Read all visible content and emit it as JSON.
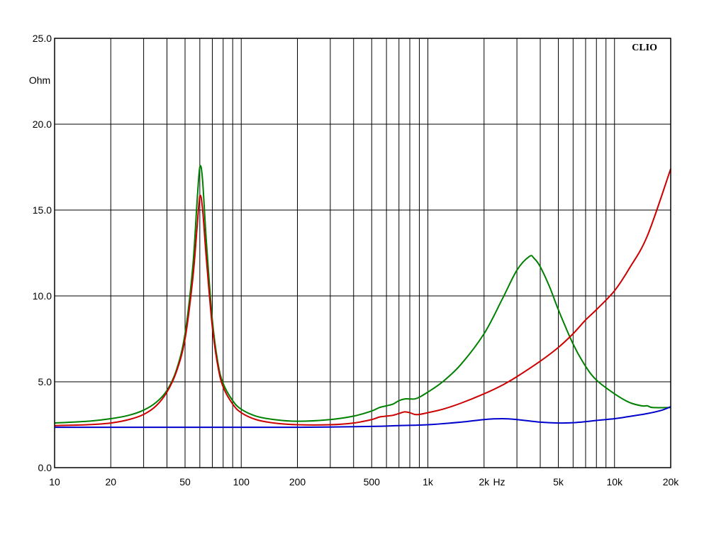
{
  "chart_data": {
    "type": "line",
    "brand": "CLIO",
    "ylabel": "Ohm",
    "xlabel": "Hz",
    "xscale": "log",
    "xlim": [
      10,
      20000
    ],
    "ylim": [
      0,
      25
    ],
    "grid": true,
    "x_ticks": [
      {
        "value": 10,
        "label": "10"
      },
      {
        "value": 20,
        "label": "20"
      },
      {
        "value": 50,
        "label": "50"
      },
      {
        "value": 100,
        "label": "100"
      },
      {
        "value": 200,
        "label": "200"
      },
      {
        "value": 500,
        "label": "500"
      },
      {
        "value": 1000,
        "label": "1k"
      },
      {
        "value": 2000,
        "label": "2k"
      },
      {
        "value": 5000,
        "label": "5k"
      },
      {
        "value": 10000,
        "label": "10k"
      },
      {
        "value": 20000,
        "label": "20k"
      }
    ],
    "y_ticks": [
      {
        "value": 0,
        "label": "0.0"
      },
      {
        "value": 5,
        "label": "5.0"
      },
      {
        "value": 10,
        "label": "10.0"
      },
      {
        "value": 15,
        "label": "15.0"
      },
      {
        "value": 20,
        "label": "20.0"
      },
      {
        "value": 25,
        "label": "25.0"
      }
    ],
    "series": [
      {
        "color": "#008000",
        "points": [
          [
            10,
            2.6
          ],
          [
            15,
            2.7
          ],
          [
            20,
            2.85
          ],
          [
            25,
            3.05
          ],
          [
            30,
            3.35
          ],
          [
            35,
            3.8
          ],
          [
            40,
            4.5
          ],
          [
            45,
            5.7
          ],
          [
            50,
            7.8
          ],
          [
            55,
            11.7
          ],
          [
            58,
            15.5
          ],
          [
            60,
            17.5
          ],
          [
            62,
            16.8
          ],
          [
            65,
            13.2
          ],
          [
            70,
            8.6
          ],
          [
            75,
            6.1
          ],
          [
            80,
            4.9
          ],
          [
            90,
            3.9
          ],
          [
            100,
            3.4
          ],
          [
            120,
            3.0
          ],
          [
            150,
            2.8
          ],
          [
            200,
            2.7
          ],
          [
            300,
            2.8
          ],
          [
            400,
            3.0
          ],
          [
            500,
            3.3
          ],
          [
            550,
            3.5
          ],
          [
            600,
            3.6
          ],
          [
            650,
            3.7
          ],
          [
            700,
            3.9
          ],
          [
            750,
            4.0
          ],
          [
            800,
            4.0
          ],
          [
            850,
            4.0
          ],
          [
            900,
            4.1
          ],
          [
            1000,
            4.4
          ],
          [
            1200,
            5.0
          ],
          [
            1500,
            6.0
          ],
          [
            2000,
            7.8
          ],
          [
            2500,
            9.8
          ],
          [
            3000,
            11.5
          ],
          [
            3500,
            12.3
          ],
          [
            3700,
            12.2
          ],
          [
            4000,
            11.7
          ],
          [
            4500,
            10.5
          ],
          [
            5000,
            9.2
          ],
          [
            6000,
            7.2
          ],
          [
            7000,
            5.9
          ],
          [
            8000,
            5.1
          ],
          [
            10000,
            4.3
          ],
          [
            12000,
            3.8
          ],
          [
            14000,
            3.6
          ],
          [
            15000,
            3.6
          ],
          [
            16000,
            3.5
          ],
          [
            20000,
            3.5
          ]
        ]
      },
      {
        "color": "#CC0000",
        "points": [
          [
            10,
            2.45
          ],
          [
            15,
            2.5
          ],
          [
            20,
            2.6
          ],
          [
            25,
            2.8
          ],
          [
            30,
            3.1
          ],
          [
            35,
            3.6
          ],
          [
            40,
            4.4
          ],
          [
            45,
            5.6
          ],
          [
            50,
            7.5
          ],
          [
            55,
            11.0
          ],
          [
            58,
            14.0
          ],
          [
            60,
            15.8
          ],
          [
            62,
            15.1
          ],
          [
            65,
            12.2
          ],
          [
            70,
            8.2
          ],
          [
            75,
            5.9
          ],
          [
            80,
            4.7
          ],
          [
            90,
            3.7
          ],
          [
            100,
            3.2
          ],
          [
            120,
            2.8
          ],
          [
            150,
            2.6
          ],
          [
            200,
            2.5
          ],
          [
            300,
            2.5
          ],
          [
            400,
            2.6
          ],
          [
            500,
            2.8
          ],
          [
            550,
            2.95
          ],
          [
            600,
            3.0
          ],
          [
            650,
            3.05
          ],
          [
            700,
            3.15
          ],
          [
            750,
            3.25
          ],
          [
            800,
            3.2
          ],
          [
            850,
            3.1
          ],
          [
            900,
            3.1
          ],
          [
            1000,
            3.2
          ],
          [
            1200,
            3.4
          ],
          [
            1500,
            3.75
          ],
          [
            2000,
            4.3
          ],
          [
            2500,
            4.8
          ],
          [
            3000,
            5.3
          ],
          [
            4000,
            6.2
          ],
          [
            5000,
            7.0
          ],
          [
            6000,
            7.8
          ],
          [
            7000,
            8.6
          ],
          [
            8000,
            9.2
          ],
          [
            10000,
            10.3
          ],
          [
            12000,
            11.6
          ],
          [
            15000,
            13.5
          ],
          [
            20000,
            17.4
          ]
        ]
      },
      {
        "color": "#0000CC",
        "points": [
          [
            10,
            2.35
          ],
          [
            50,
            2.35
          ],
          [
            100,
            2.35
          ],
          [
            200,
            2.35
          ],
          [
            500,
            2.4
          ],
          [
            700,
            2.45
          ],
          [
            1000,
            2.5
          ],
          [
            1500,
            2.65
          ],
          [
            2000,
            2.8
          ],
          [
            2500,
            2.85
          ],
          [
            3000,
            2.8
          ],
          [
            4000,
            2.65
          ],
          [
            5000,
            2.6
          ],
          [
            6000,
            2.62
          ],
          [
            7000,
            2.68
          ],
          [
            8000,
            2.75
          ],
          [
            10000,
            2.85
          ],
          [
            12000,
            2.98
          ],
          [
            15000,
            3.15
          ],
          [
            18000,
            3.35
          ],
          [
            20000,
            3.55
          ]
        ]
      }
    ]
  }
}
